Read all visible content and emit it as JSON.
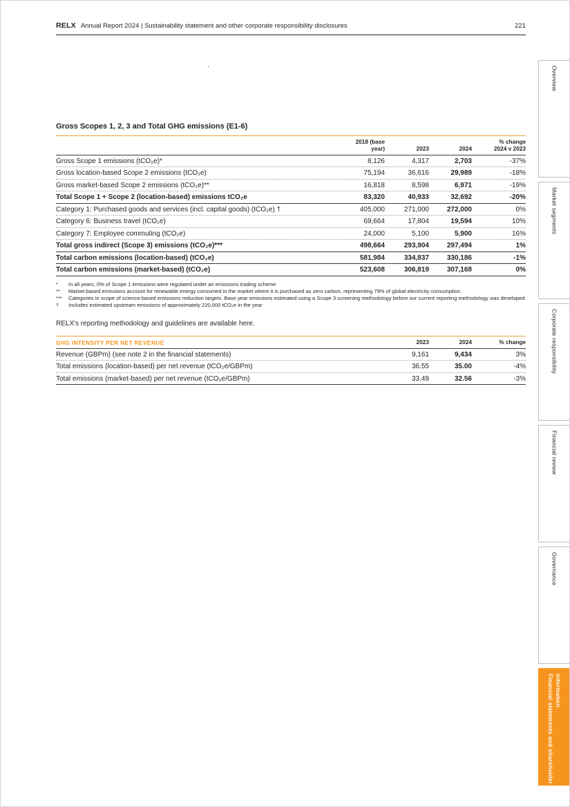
{
  "header": {
    "brand": "RELX",
    "title": "Annual Report 2024 | Sustainability statement and other corporate responsibility disclosures",
    "page_number": "221"
  },
  "stray_mark": ".",
  "colors": {
    "accent_orange": "#F7941D",
    "text": "#231F20",
    "rule_dark": "#3C3C3B",
    "rule_dotted": "#9B9B9B",
    "tab_border_gray": "#BDBDBD"
  },
  "sidebar": {
    "tabs": [
      {
        "label": "Overview",
        "active": false
      },
      {
        "label": "Market segments",
        "active": false
      },
      {
        "label": "Corporate responsibility",
        "active": false
      },
      {
        "label": "Financial review",
        "active": false
      },
      {
        "label": "Governance",
        "active": false
      },
      {
        "label": "Financial statements and shareholder information",
        "active": true
      }
    ]
  },
  "emissions_table": {
    "title": "Gross Scopes 1, 2, 3 and Total GHG emissions (E1-6)",
    "col_headers": [
      "2018 (base\nyear)",
      "2023",
      "2024",
      "% change\n2024 v 2023"
    ],
    "rows": [
      {
        "label": "Gross Scope 1 emissions (tCO₂e)*",
        "v2018": "8,126",
        "v2023": "4,317",
        "v2024": "2,703",
        "change": "-37%"
      },
      {
        "label": "Gross location-based Scope 2 emissions (tCO₂e)",
        "v2018": "75,194",
        "v2023": "36,616",
        "v2024": "29,989",
        "change": "-18%"
      },
      {
        "label": "Gross market-based Scope 2 emissions (tCO₂e)**",
        "v2018": "16,818",
        "v2023": "8,598",
        "v2024": "6,971",
        "change": "-19%"
      },
      {
        "label": "Total Scope 1 + Scope 2 (location-based) emissions tCO₂e",
        "v2018": "83,320",
        "v2023": "40,933",
        "v2024": "32,692",
        "change": "-20%"
      },
      {
        "label": "Category 1: Purchased goods and services (incl. capital goods) (tCO₂e) †",
        "v2018": "405,000",
        "v2023": "271,000",
        "v2024": "272,000",
        "change": "0%"
      },
      {
        "label": "Category 6: Business travel (tCO₂e)",
        "v2018": "69,664",
        "v2023": "17,804",
        "v2024": "19,594",
        "change": "10%"
      },
      {
        "label": "Category 7: Employee commuting (tCO₂e)",
        "v2018": "24,000",
        "v2023": "5,100",
        "v2024": "5,900",
        "change": "16%"
      },
      {
        "label": "Total gross indirect (Scope 3) emissions (tCO₂e)***",
        "v2018": "498,664",
        "v2023": "293,904",
        "v2024": "297,494",
        "change": "1%"
      },
      {
        "label": "Total carbon emissions (location-based) (tCO₂e)",
        "v2018": "581,984",
        "v2023": "334,837",
        "v2024": "330,186",
        "change": "-1%"
      },
      {
        "label": "Total carbon emissions (market-based) (tCO₂e)",
        "v2018": "523,608",
        "v2023": "306,819",
        "v2024": "307,168",
        "change": "0%"
      }
    ]
  },
  "footnotes": [
    {
      "marker": "*",
      "text": "In all years, 0% of Scope 1 emissions were regulated under an emissions trading scheme"
    },
    {
      "marker": "**",
      "text": "Market-based emissions account for renewable energy consumed in the market where it is purchased as zero carbon, representing 79% of global electricity consumption"
    },
    {
      "marker": "***",
      "text": "Categories in scope of science-based emissions reduction targets. Base year emissions estimated using a Scope 3 screening methodology before our current reporting methodology was developed"
    },
    {
      "marker": "†",
      "text": "Includes estimated upstream emissions of approximately 220,000 tCO₂e in the year"
    }
  ],
  "methodology_note": "RELX's reporting methodology and guidelines are available here.",
  "intensity_table": {
    "title": "GHG INTENSITY PER NET REVENUE",
    "col_headers": [
      "2023",
      "2024",
      "% change"
    ],
    "rows": [
      {
        "label": "Revenue (GBPm) (see note 2 in the financial statements)",
        "v2023": "9,161",
        "v2024": "9,434",
        "change": "3%"
      },
      {
        "label": "Total emissions (location-based) per net revenue (tCO₂e/GBPm)",
        "v2023": "36.55",
        "v2024": "35.00",
        "change": "-4%"
      },
      {
        "label": "Total emissions (market-based) per net revenue (tCO₂e/GBPm)",
        "v2023": "33.49",
        "v2024": "32.56",
        "change": "-3%"
      }
    ]
  }
}
